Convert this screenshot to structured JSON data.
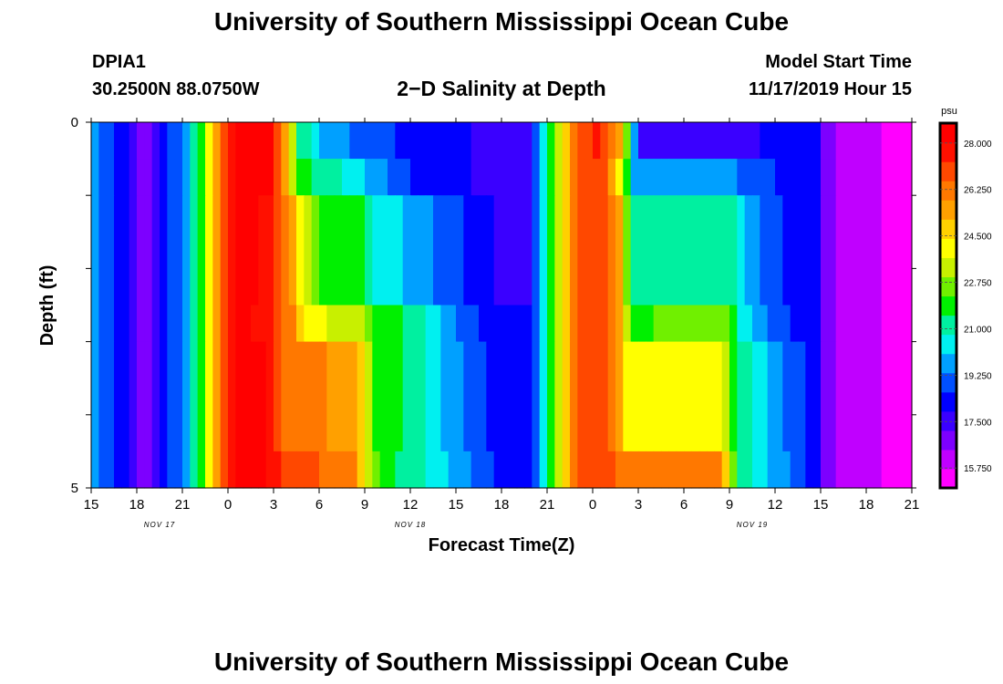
{
  "page": {
    "title_top": "University of Southern Mississippi Ocean Cube",
    "title_bottom": "University of Southern Mississippi Ocean Cube",
    "station_id": "DPIA1",
    "station_coords": "30.2500N 88.0750W",
    "model_start_label": "Model Start Time",
    "model_start_value": "11/17/2019 Hour 15"
  },
  "chart_data": {
    "type": "heatmap",
    "title": "2−D Salinity at Depth",
    "xlabel": "Forecast Time(Z)",
    "ylabel": "Depth (ft)",
    "y_tick_labels": [
      "0",
      "5"
    ],
    "ylim": [
      0,
      5
    ],
    "xlim_hours": [
      0,
      54
    ],
    "x_tick_labels": [
      "15",
      "18",
      "21",
      "0",
      "3",
      "6",
      "9",
      "12",
      "15",
      "18",
      "21",
      "0",
      "3",
      "6",
      "9",
      "12",
      "15",
      "18",
      "21"
    ],
    "date_labels": [
      {
        "text": "NOV 17",
        "at_hour": 4.5
      },
      {
        "text": "NOV 18",
        "at_hour": 21
      },
      {
        "text": "NOV 19",
        "at_hour": 43.5
      }
    ],
    "colorbar": {
      "unit": "psu",
      "min": 15.0,
      "max": 28.75,
      "tick_labels": [
        "28.000",
        "26.250",
        "24.500",
        "22.750",
        "21.000",
        "19.250",
        "17.500",
        "15.750"
      ],
      "colors": [
        "#ff00ff",
        "#c000ff",
        "#7d00ff",
        "#3a00ff",
        "#0000ff",
        "#0050ff",
        "#00a0ff",
        "#00f0f0",
        "#00f0a0",
        "#00f000",
        "#70f000",
        "#c8f000",
        "#ffff00",
        "#ffd000",
        "#ffa000",
        "#ff7800",
        "#ff4800",
        "#ff1000",
        "#ff0000"
      ]
    },
    "row_depths_ft": [
      0.25,
      0.75,
      1.75,
      2.75,
      3.75,
      4.5
    ],
    "row_keyframes": [
      [
        [
          0,
          19.6
        ],
        [
          1,
          19.2
        ],
        [
          2,
          18.2
        ],
        [
          3,
          17.0
        ],
        [
          4,
          17.2
        ],
        [
          5,
          18.4
        ],
        [
          6,
          19.6
        ],
        [
          7,
          21.2
        ],
        [
          7.5,
          22.8
        ],
        [
          8,
          24.6
        ],
        [
          8.5,
          26.2
        ],
        [
          9,
          27.8
        ],
        [
          10,
          28.4
        ],
        [
          12,
          28.1
        ],
        [
          12.5,
          26.5
        ],
        [
          13,
          24.5
        ],
        [
          13.5,
          21.8
        ],
        [
          14,
          21.0
        ],
        [
          15,
          20.2
        ],
        [
          16,
          19.6
        ],
        [
          18,
          19.0
        ],
        [
          21,
          18.4
        ],
        [
          25,
          17.9
        ],
        [
          27,
          17.6
        ],
        [
          29,
          17.9
        ],
        [
          29.5,
          19.5
        ],
        [
          30,
          21.5
        ],
        [
          30.5,
          22.8
        ],
        [
          31,
          24.2
        ],
        [
          32,
          26.5
        ],
        [
          33.5,
          27.6
        ],
        [
          34.5,
          26.0
        ],
        [
          35,
          24.5
        ],
        [
          35.5,
          21.0
        ],
        [
          36,
          18.0
        ],
        [
          36.5,
          17.6
        ],
        [
          40,
          17.7
        ],
        [
          44,
          17.9
        ],
        [
          48,
          18.0
        ],
        [
          48.3,
          16.6
        ],
        [
          50,
          16.1
        ],
        [
          52,
          15.7
        ],
        [
          54,
          15.3
        ]
      ],
      [
        [
          0,
          19.6
        ],
        [
          1,
          19.2
        ],
        [
          2,
          18.2
        ],
        [
          3,
          17.0
        ],
        [
          4,
          17.2
        ],
        [
          5,
          18.4
        ],
        [
          6,
          19.6
        ],
        [
          7,
          21.2
        ],
        [
          7.5,
          22.8
        ],
        [
          8,
          24.6
        ],
        [
          8.5,
          26.2
        ],
        [
          9,
          27.8
        ],
        [
          10,
          28.4
        ],
        [
          12,
          28.0
        ],
        [
          12.5,
          25.6
        ],
        [
          13,
          24.8
        ],
        [
          13.5,
          22.5
        ],
        [
          14,
          21.8
        ],
        [
          15,
          21.0
        ],
        [
          16,
          21.0
        ],
        [
          18,
          20.2
        ],
        [
          19,
          19.5
        ],
        [
          21,
          18.6
        ],
        [
          25,
          17.9
        ],
        [
          27,
          17.6
        ],
        [
          29,
          17.9
        ],
        [
          29.5,
          19.5
        ],
        [
          30,
          21.5
        ],
        [
          30.5,
          22.8
        ],
        [
          31,
          24.2
        ],
        [
          32,
          26.8
        ],
        [
          33.5,
          27.2
        ],
        [
          34.5,
          25.3
        ],
        [
          35,
          23.5
        ],
        [
          35.5,
          20.0
        ],
        [
          36,
          19.6
        ],
        [
          40,
          19.8
        ],
        [
          42,
          19.7
        ],
        [
          43,
          19.2
        ],
        [
          45,
          18.6
        ],
        [
          48,
          18.0
        ],
        [
          48.3,
          16.6
        ],
        [
          50,
          16.1
        ],
        [
          52,
          15.7
        ],
        [
          54,
          15.3
        ]
      ],
      [
        [
          0,
          19.6
        ],
        [
          1,
          19.2
        ],
        [
          2,
          18.2
        ],
        [
          3,
          17.0
        ],
        [
          4,
          17.2
        ],
        [
          5,
          18.4
        ],
        [
          6,
          19.6
        ],
        [
          7,
          21.2
        ],
        [
          7.5,
          22.8
        ],
        [
          8,
          24.6
        ],
        [
          8.5,
          26.2
        ],
        [
          9,
          27.8
        ],
        [
          10,
          28.4
        ],
        [
          12,
          27.5
        ],
        [
          12.5,
          26.8
        ],
        [
          13,
          25.8
        ],
        [
          13.5,
          24.6
        ],
        [
          14,
          23.4
        ],
        [
          15,
          22.2
        ],
        [
          18,
          21.8
        ],
        [
          19,
          20.4
        ],
        [
          21,
          20.0
        ],
        [
          22,
          19.5
        ],
        [
          25,
          18.5
        ],
        [
          27,
          17.8
        ],
        [
          29,
          17.9
        ],
        [
          29.5,
          19.5
        ],
        [
          30,
          21.5
        ],
        [
          30.5,
          22.8
        ],
        [
          31,
          24.2
        ],
        [
          32,
          26.8
        ],
        [
          34.5,
          26.5
        ],
        [
          35,
          24.0
        ],
        [
          35.5,
          21.5
        ],
        [
          36,
          21.3
        ],
        [
          42,
          21.5
        ],
        [
          42.5,
          20.3
        ],
        [
          45,
          18.8
        ],
        [
          48,
          18.0
        ],
        [
          48.3,
          16.6
        ],
        [
          50,
          16.1
        ],
        [
          52,
          15.7
        ],
        [
          54,
          15.3
        ]
      ],
      [
        [
          0,
          19.6
        ],
        [
          1,
          19.2
        ],
        [
          2,
          18.2
        ],
        [
          3,
          17.0
        ],
        [
          4,
          17.2
        ],
        [
          5,
          18.4
        ],
        [
          6,
          19.6
        ],
        [
          7,
          21.2
        ],
        [
          7.5,
          22.8
        ],
        [
          8,
          24.6
        ],
        [
          8.5,
          26.2
        ],
        [
          9,
          27.8
        ],
        [
          10,
          28.4
        ],
        [
          12,
          27.3
        ],
        [
          12.8,
          26.4
        ],
        [
          13.5,
          25.6
        ],
        [
          14,
          24.6
        ],
        [
          15,
          23.8
        ],
        [
          18,
          23.3
        ],
        [
          18.5,
          21.8
        ],
        [
          21,
          21.4
        ],
        [
          22,
          20.6
        ],
        [
          25,
          18.8
        ],
        [
          27,
          18.0
        ],
        [
          29,
          17.9
        ],
        [
          29.5,
          19.5
        ],
        [
          30,
          21.5
        ],
        [
          30.5,
          22.8
        ],
        [
          31,
          24.2
        ],
        [
          32,
          26.8
        ],
        [
          34.5,
          26.5
        ],
        [
          35,
          25.0
        ],
        [
          35.5,
          22.2
        ],
        [
          36,
          22.2
        ],
        [
          42,
          22.4
        ],
        [
          42.5,
          20.8
        ],
        [
          45,
          19.0
        ],
        [
          48,
          18.0
        ],
        [
          48.3,
          16.6
        ],
        [
          50,
          16.1
        ],
        [
          52,
          15.7
        ],
        [
          54,
          15.3
        ]
      ],
      [
        [
          0,
          19.6
        ],
        [
          1,
          19.2
        ],
        [
          2,
          18.2
        ],
        [
          3,
          17.0
        ],
        [
          4,
          17.2
        ],
        [
          5,
          18.4
        ],
        [
          6,
          19.6
        ],
        [
          7,
          21.2
        ],
        [
          7.5,
          22.8
        ],
        [
          8,
          24.6
        ],
        [
          8.5,
          26.2
        ],
        [
          9,
          27.8
        ],
        [
          10,
          28.4
        ],
        [
          11.5,
          28.0
        ],
        [
          12.5,
          26.6
        ],
        [
          14,
          26.0
        ],
        [
          17.5,
          25.6
        ],
        [
          18,
          24.6
        ],
        [
          18.5,
          22.0
        ],
        [
          21,
          21.4
        ],
        [
          23,
          20.0
        ],
        [
          25,
          19.2
        ],
        [
          27,
          18.2
        ],
        [
          29,
          17.9
        ],
        [
          29.5,
          19.5
        ],
        [
          30,
          21.5
        ],
        [
          30.5,
          22.8
        ],
        [
          31,
          24.2
        ],
        [
          32,
          26.8
        ],
        [
          34.5,
          26.5
        ],
        [
          35,
          24.5
        ],
        [
          36,
          24.0
        ],
        [
          41.5,
          24.2
        ],
        [
          42,
          22.5
        ],
        [
          42.5,
          21.4
        ],
        [
          45,
          19.5
        ],
        [
          48,
          18.0
        ],
        [
          48.3,
          16.6
        ],
        [
          50,
          16.1
        ],
        [
          52,
          15.7
        ],
        [
          54,
          15.3
        ]
      ],
      [
        [
          0,
          19.6
        ],
        [
          1,
          19.2
        ],
        [
          2,
          18.2
        ],
        [
          3,
          17.0
        ],
        [
          4,
          17.2
        ],
        [
          5,
          18.4
        ],
        [
          6,
          19.6
        ],
        [
          7,
          21.2
        ],
        [
          7.5,
          22.8
        ],
        [
          8,
          24.6
        ],
        [
          8.5,
          26.2
        ],
        [
          9,
          27.8
        ],
        [
          10,
          28.4
        ],
        [
          11.5,
          28.0
        ],
        [
          12.5,
          27.2
        ],
        [
          17.5,
          26.0
        ],
        [
          18,
          24.2
        ],
        [
          18.5,
          22.8
        ],
        [
          19,
          21.8
        ],
        [
          21,
          21.2
        ],
        [
          23,
          20.2
        ],
        [
          25,
          19.3
        ],
        [
          27,
          18.3
        ],
        [
          29,
          17.9
        ],
        [
          29.5,
          19.5
        ],
        [
          30,
          21.5
        ],
        [
          30.5,
          22.8
        ],
        [
          31,
          24.2
        ],
        [
          32,
          26.8
        ],
        [
          41.5,
          26.0
        ],
        [
          42,
          23.5
        ],
        [
          42.5,
          21.4
        ],
        [
          45,
          19.8
        ],
        [
          48,
          18.2
        ],
        [
          48.3,
          16.6
        ],
        [
          50,
          16.1
        ],
        [
          52,
          15.7
        ],
        [
          54,
          15.3
        ]
      ]
    ]
  }
}
